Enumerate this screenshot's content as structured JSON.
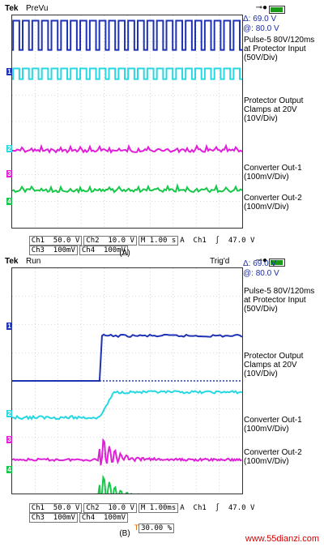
{
  "chart_data": [
    {
      "type": "line",
      "panel": "A",
      "status": {
        "brand": "Tek",
        "mode": "PreVu"
      },
      "measurements": {
        "delta": "Δ: 69.0 V",
        "at": "@: 80.0 V"
      },
      "series": [
        {
          "name": "Pulse-5 80V/120ms at Protector Input (50V/Div)",
          "channel": "1",
          "color": "#1e32b4",
          "shape": "pulse-train",
          "pulses": 24,
          "low_div": 2.7,
          "high_div": 3.8
        },
        {
          "name": "Protector Output Clamps at 20V (10V/Div)",
          "channel": "2",
          "color": "#27d8e2",
          "shape": "pulse-train",
          "pulses": 24,
          "low_div": 1.6,
          "high_div": 2.0
        },
        {
          "name": "Converter Out-1 (100mV/Div)",
          "channel": "3",
          "color": "#e020d8",
          "shape": "noise",
          "level_div": -1.1
        },
        {
          "name": "Converter Out-2 (100mV/Div)",
          "channel": "4",
          "color": "#18c84a",
          "shape": "noise",
          "level_div": -2.6
        }
      ],
      "readout": {
        "line1": [
          "Ch1  50.0 V",
          "Ch2  10.0 V",
          "M 1.00 s",
          "A  Ch1  ∫  47.0 V"
        ],
        "line2": [
          "Ch3  100mV",
          "Ch4  100mV"
        ]
      },
      "caption": "(A)"
    },
    {
      "type": "line",
      "panel": "B",
      "status": {
        "brand": "Tek",
        "mode": "Run",
        "trig": "Trig'd"
      },
      "measurements": {
        "delta": "Δ: 69.0 V",
        "at": "@: 80.0 V"
      },
      "series": [
        {
          "name": "Pulse-5 80V/120ms at Protector Input (50V/Div)",
          "channel": "1",
          "color": "#1e32b4",
          "shape": "step",
          "step_at_div": -1.2,
          "low_div": 0.0,
          "high_div": 1.6
        },
        {
          "name": "Protector Output Clamps at 20V (10V/Div)",
          "channel": "2",
          "color": "#27d8e2",
          "shape": "rise",
          "step_at_div": -1.2,
          "low_div": -1.3,
          "high_div": -0.4
        },
        {
          "name": "Converter Out-1 (100mV/Div)",
          "channel": "3",
          "color": "#e020d8",
          "shape": "ring",
          "step_at_div": -1.2,
          "level_div": -2.8
        },
        {
          "name": "Converter Out-2 (100mV/Div)",
          "channel": "4",
          "color": "#18c84a",
          "shape": "ring",
          "step_at_div": -1.2,
          "level_div": -4.1
        }
      ],
      "readout": {
        "line1": [
          "Ch1  50.0 V",
          "Ch2  10.0 V",
          "M 1.00ms",
          "A  Ch1  ∫  47.0 V"
        ],
        "line2": [
          "Ch3  100mV",
          "Ch4  100mV"
        ],
        "trigger_pos": "30.00 %"
      },
      "caption": "(B)"
    }
  ],
  "watermark": "www.55dianzi.com"
}
